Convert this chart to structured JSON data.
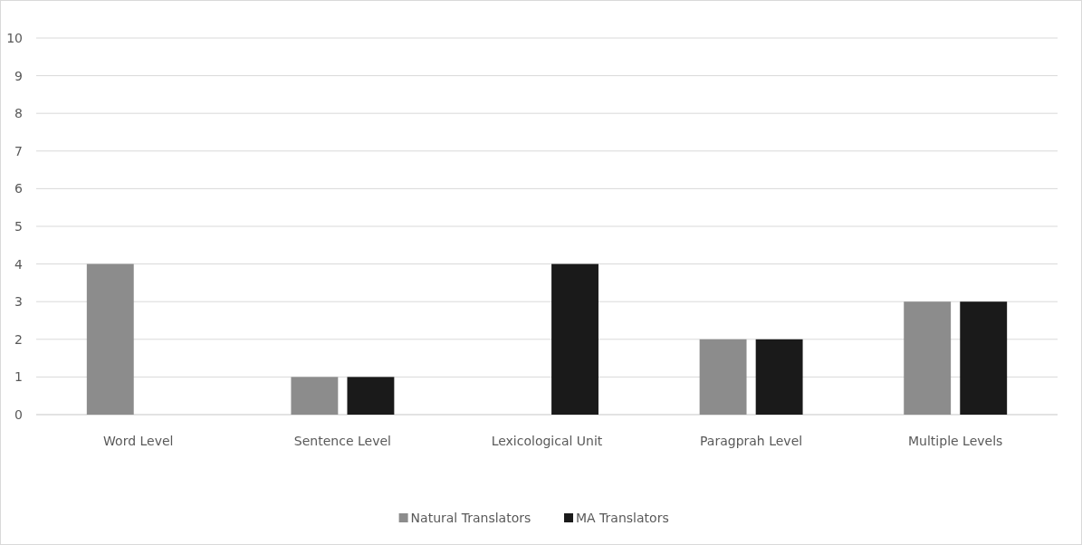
{
  "chart_data": {
    "type": "bar",
    "categories": [
      "Word Level",
      "Sentence Level",
      "Lexicological Unit",
      "Paragprah Level",
      "Multiple Levels"
    ],
    "series": [
      {
        "name": "Natural Translators",
        "color": "#8c8c8c",
        "values": [
          4,
          1,
          0,
          2,
          3
        ]
      },
      {
        "name": "MA Translators",
        "color": "#1a1a1a",
        "values": [
          0,
          1,
          4,
          2,
          3
        ]
      }
    ],
    "ylim": [
      0,
      10
    ],
    "yticks": [
      0,
      1,
      2,
      3,
      4,
      5,
      6,
      7,
      8,
      9,
      10
    ],
    "grid": "y",
    "legend": "bottom"
  }
}
